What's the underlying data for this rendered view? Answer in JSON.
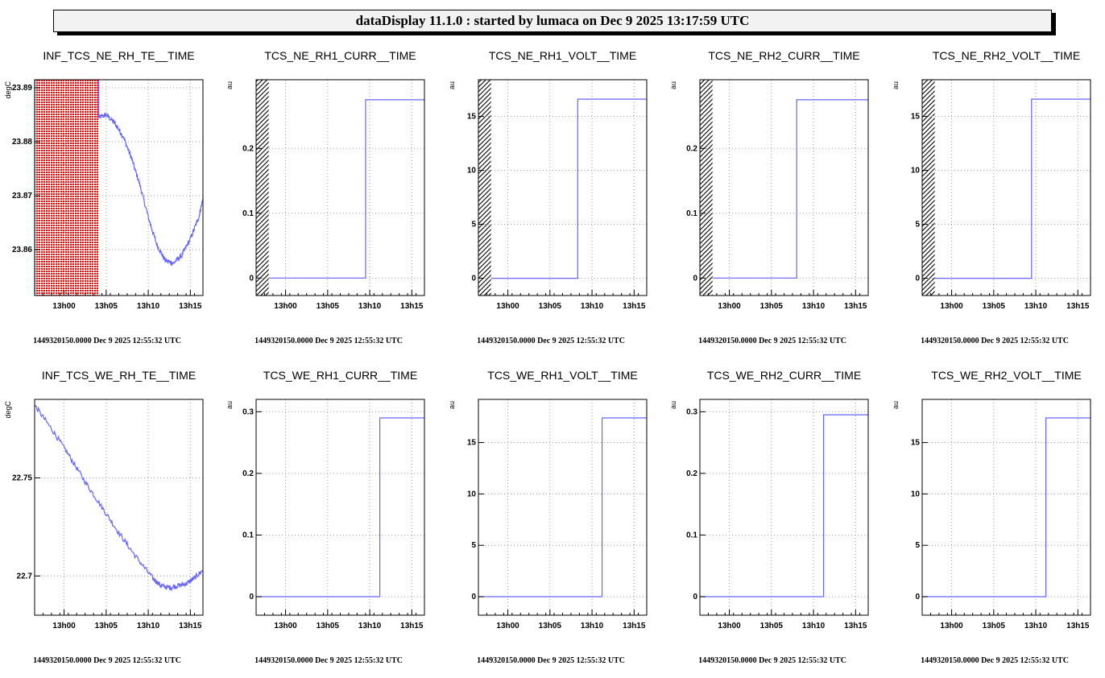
{
  "banner": "dataDisplay 11.1.0 : started by lumaca on Dec  9 2025 13:17:59 UTC",
  "colors": {
    "series": "#6666ff",
    "invalid_fill": "#ff0000",
    "hatch": "#000000",
    "grid": "#999999"
  },
  "chart_data": [
    {
      "type": "line",
      "title": "INF_TCS_NE_RH_TE__TIME",
      "ylabel": "degC",
      "xlim": [
        0,
        20
      ],
      "ylim": [
        23.8515,
        23.8915
      ],
      "xticks": [
        3.5,
        8.5,
        13.5,
        18.5
      ],
      "xticklabels": [
        "13h00",
        "13h05",
        "13h10",
        "13h15"
      ],
      "yticks": [
        23.86,
        23.87,
        23.88,
        23.89
      ],
      "yticklabels": [
        "23.86",
        "23.87",
        "23.88",
        "23.89"
      ],
      "shaded": {
        "from": 0,
        "to": 7.6,
        "style": "red"
      },
      "noisy": true,
      "x": [
        7.6,
        8.5,
        9.5,
        10.5,
        11.5,
        12.5,
        13.5,
        14.5,
        15.5,
        16.5,
        17.5,
        18.5,
        19.5,
        20
      ],
      "y": [
        23.8845,
        23.885,
        23.8835,
        23.881,
        23.877,
        23.872,
        23.866,
        23.861,
        23.858,
        23.8575,
        23.859,
        23.862,
        23.866,
        23.8695
      ],
      "footer": "1449320150.0000 Dec 9 2025 12:55:32 UTC"
    },
    {
      "type": "line",
      "title": "TCS_NE_RH1_CURR__TIME",
      "ylabel": "au",
      "xlim": [
        0,
        20
      ],
      "ylim": [
        -0.027,
        0.306
      ],
      "xticks": [
        3.5,
        8.5,
        13.5,
        18.5
      ],
      "xticklabels": [
        "13h00",
        "13h05",
        "13h10",
        "13h15"
      ],
      "yticks": [
        0,
        0.1,
        0.2
      ],
      "yticklabels": [
        "0",
        "0.1",
        "0.2"
      ],
      "shaded": {
        "from": 0,
        "to": 1.5,
        "style": "hatch"
      },
      "noisy": false,
      "x": [
        1.5,
        13,
        13,
        20
      ],
      "y": [
        0,
        0,
        0.275,
        0.275
      ],
      "footer": "1449320150.0000 Dec 9 2025 12:55:32 UTC"
    },
    {
      "type": "line",
      "title": "TCS_NE_RH1_VOLT__TIME",
      "ylabel": "au",
      "xlim": [
        0,
        20
      ],
      "ylim": [
        -1.6,
        18.4
      ],
      "xticks": [
        3.5,
        8.5,
        13.5,
        18.5
      ],
      "xticklabels": [
        "13h00",
        "13h05",
        "13h10",
        "13h15"
      ],
      "yticks": [
        0,
        5,
        10,
        15
      ],
      "yticklabels": [
        "0",
        "5",
        "10",
        "15"
      ],
      "shaded": {
        "from": 0,
        "to": 1.5,
        "style": "hatch"
      },
      "noisy": false,
      "x": [
        1.5,
        11.8,
        11.8,
        20
      ],
      "y": [
        0,
        0,
        16.6,
        16.6
      ],
      "footer": "1449320150.0000 Dec 9 2025 12:55:32 UTC"
    },
    {
      "type": "line",
      "title": "TCS_NE_RH2_CURR__TIME",
      "ylabel": "au",
      "xlim": [
        0,
        20
      ],
      "ylim": [
        -0.027,
        0.306
      ],
      "xticks": [
        3.5,
        8.5,
        13.5,
        18.5
      ],
      "xticklabels": [
        "13h00",
        "13h05",
        "13h10",
        "13h15"
      ],
      "yticks": [
        0,
        0.1,
        0.2
      ],
      "yticklabels": [
        "0",
        "0.1",
        "0.2"
      ],
      "shaded": {
        "from": 0,
        "to": 1.5,
        "style": "hatch"
      },
      "noisy": false,
      "x": [
        1.5,
        11.5,
        11.5,
        20
      ],
      "y": [
        0,
        0,
        0.275,
        0.275
      ],
      "footer": "1449320150.0000 Dec 9 2025 12:55:32 UTC"
    },
    {
      "type": "line",
      "title": "TCS_NE_RH2_VOLT__TIME",
      "ylabel": "au",
      "xlim": [
        0,
        20
      ],
      "ylim": [
        -1.6,
        18.4
      ],
      "xticks": [
        3.5,
        8.5,
        13.5,
        18.5
      ],
      "xticklabels": [
        "13h00",
        "13h05",
        "13h10",
        "13h15"
      ],
      "yticks": [
        0,
        5,
        10,
        15
      ],
      "yticklabels": [
        "0",
        "5",
        "10",
        "15"
      ],
      "shaded": {
        "from": 0,
        "to": 1.5,
        "style": "hatch"
      },
      "noisy": false,
      "x": [
        1.5,
        13,
        13,
        20
      ],
      "y": [
        0,
        0,
        16.6,
        16.6
      ],
      "footer": "1449320150.0000 Dec 9 2025 12:55:32 UTC"
    },
    {
      "type": "line",
      "title": "INF_TCS_WE_RH_TE__TIME",
      "ylabel": "degC",
      "xlim": [
        0,
        20
      ],
      "ylim": [
        22.68,
        22.79
      ],
      "xticks": [
        3.5,
        8.5,
        13.5,
        18.5
      ],
      "xticklabels": [
        "13h00",
        "13h05",
        "13h10",
        "13h15"
      ],
      "yticks": [
        22.7,
        22.75
      ],
      "yticklabels": [
        "22.7",
        "22.75"
      ],
      "shaded": null,
      "noisy": true,
      "x": [
        0,
        2,
        4,
        6,
        8,
        10,
        12,
        14,
        15,
        16,
        17,
        18,
        19,
        20
      ],
      "y": [
        22.787,
        22.775,
        22.762,
        22.748,
        22.735,
        22.722,
        22.71,
        22.699,
        22.695,
        22.694,
        22.695,
        22.696,
        22.699,
        22.703
      ],
      "footer": "1449320150.0000 Dec 9 2025 12:55:32 UTC"
    },
    {
      "type": "line",
      "title": "TCS_WE_RH1_CURR__TIME",
      "ylabel": "au",
      "xlim": [
        0,
        20
      ],
      "ylim": [
        -0.03,
        0.32
      ],
      "xticks": [
        3.5,
        8.5,
        13.5,
        18.5
      ],
      "xticklabels": [
        "13h00",
        "13h05",
        "13h10",
        "13h15"
      ],
      "yticks": [
        0,
        0.1,
        0.2,
        0.3
      ],
      "yticklabels": [
        "0",
        "0.1",
        "0.2",
        "0.3"
      ],
      "shaded": null,
      "noisy": false,
      "x": [
        0,
        14.7,
        14.7,
        20
      ],
      "y": [
        0,
        0,
        0.29,
        0.29
      ],
      "footer": "1449320150.0000 Dec 9 2025 12:55:32 UTC"
    },
    {
      "type": "line",
      "title": "TCS_WE_RH1_VOLT__TIME",
      "ylabel": "au",
      "xlim": [
        0,
        20
      ],
      "ylim": [
        -1.8,
        19.2
      ],
      "xticks": [
        3.5,
        8.5,
        13.5,
        18.5
      ],
      "xticklabels": [
        "13h00",
        "13h05",
        "13h10",
        "13h15"
      ],
      "yticks": [
        0,
        5,
        10,
        15
      ],
      "yticklabels": [
        "0",
        "5",
        "10",
        "15"
      ],
      "shaded": null,
      "noisy": false,
      "x": [
        0,
        14.7,
        14.7,
        20
      ],
      "y": [
        0,
        0,
        17.4,
        17.4
      ],
      "footer": "1449320150.0000 Dec 9 2025 12:55:32 UTC"
    },
    {
      "type": "line",
      "title": "TCS_WE_RH2_CURR__TIME",
      "ylabel": "au",
      "xlim": [
        0,
        20
      ],
      "ylim": [
        -0.03,
        0.32
      ],
      "xticks": [
        3.5,
        8.5,
        13.5,
        18.5
      ],
      "xticklabels": [
        "13h00",
        "13h05",
        "13h10",
        "13h15"
      ],
      "yticks": [
        0,
        0.1,
        0.2,
        0.3
      ],
      "yticklabels": [
        "0",
        "0.1",
        "0.2",
        "0.3"
      ],
      "shaded": null,
      "noisy": false,
      "x": [
        0,
        14.7,
        14.7,
        20
      ],
      "y": [
        0,
        0,
        0.295,
        0.295
      ],
      "footer": "1449320150.0000 Dec 9 2025 12:55:32 UTC"
    },
    {
      "type": "line",
      "title": "TCS_WE_RH2_VOLT__TIME",
      "ylabel": "au",
      "xlim": [
        0,
        20
      ],
      "ylim": [
        -1.8,
        19.2
      ],
      "xticks": [
        3.5,
        8.5,
        13.5,
        18.5
      ],
      "xticklabels": [
        "13h00",
        "13h05",
        "13h10",
        "13h15"
      ],
      "yticks": [
        0,
        5,
        10,
        15
      ],
      "yticklabels": [
        "0",
        "5",
        "10",
        "15"
      ],
      "shaded": null,
      "noisy": false,
      "x": [
        0,
        14.7,
        14.7,
        20
      ],
      "y": [
        0,
        0,
        17.4,
        17.4
      ],
      "footer": "1449320150.0000 Dec 9 2025 12:55:32 UTC"
    }
  ]
}
